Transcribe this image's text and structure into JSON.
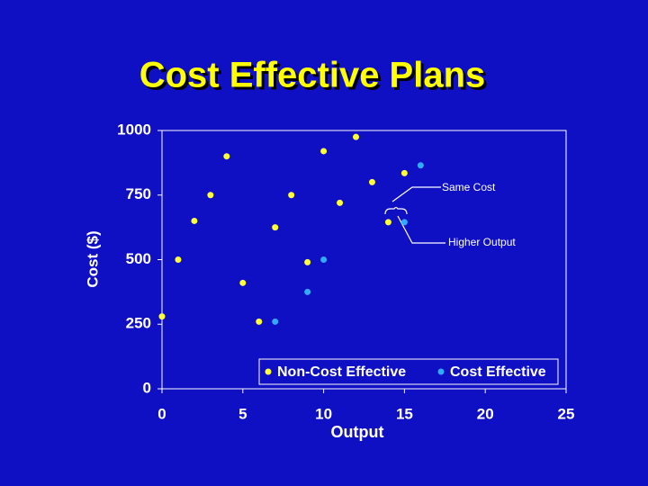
{
  "chart_data": {
    "type": "scatter",
    "title": "Cost Effective Plans",
    "x_label": "Output",
    "y_label": "Cost ($)",
    "xlim": [
      0,
      25
    ],
    "xticks": [
      0,
      5,
      10,
      15,
      20,
      25
    ],
    "ylim": [
      0,
      1000
    ],
    "yticks": [
      0,
      250,
      500,
      750,
      1000
    ],
    "legend": "bottom",
    "series": [
      {
        "name": "Non-Cost Effective",
        "color": "#ffff33",
        "x": [
          0,
          1,
          2,
          3,
          4,
          5,
          6,
          7,
          8,
          9,
          10,
          11,
          12,
          13,
          14,
          15
        ],
        "values": [
          280,
          500,
          650,
          750,
          900,
          410,
          260,
          625,
          750,
          490,
          920,
          720,
          975,
          800,
          645,
          835
        ]
      },
      {
        "name": "Cost Effective",
        "color": "#33aaff",
        "x": [
          7,
          9,
          10,
          15,
          16
        ],
        "values": [
          260,
          375,
          500,
          645,
          865
        ]
      }
    ],
    "annotations": [
      "Same Cost",
      "Higher Output"
    ]
  }
}
